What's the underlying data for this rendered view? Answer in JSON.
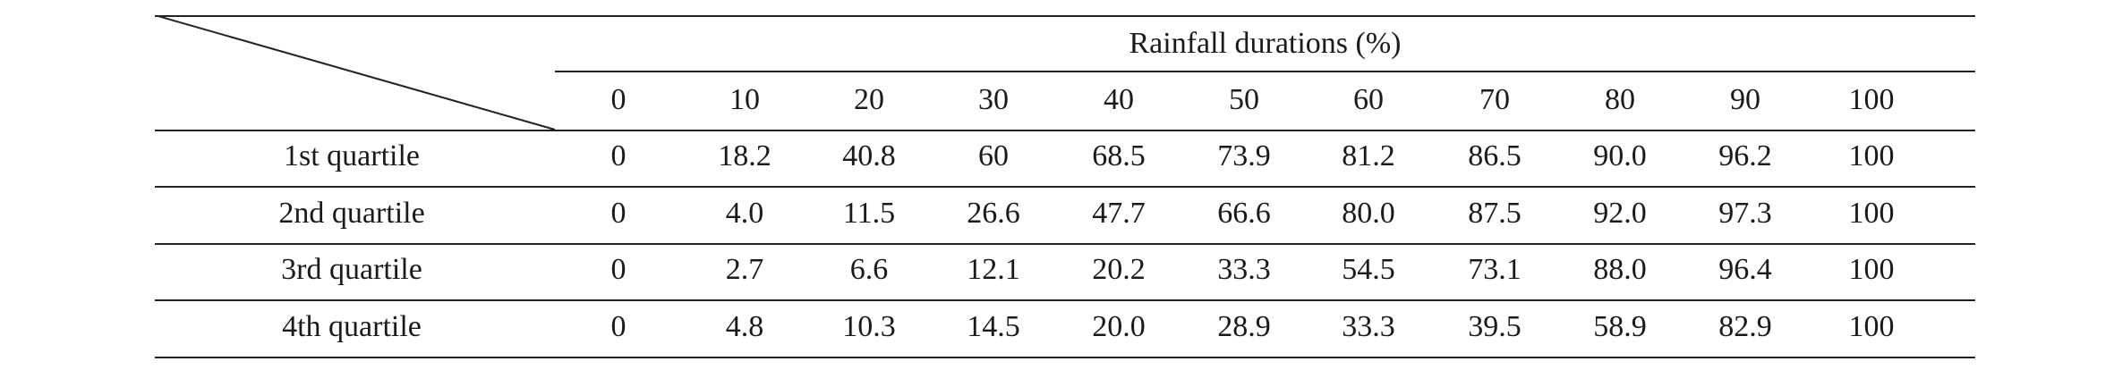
{
  "table": {
    "spanning_header": "Rainfall durations (%)",
    "columns": [
      "0",
      "10",
      "20",
      "30",
      "40",
      "50",
      "60",
      "70",
      "80",
      "90",
      "100"
    ],
    "rows": [
      {
        "label": "1st quartile",
        "values": [
          "0",
          "18.2",
          "40.8",
          "60",
          "68.5",
          "73.9",
          "81.2",
          "86.5",
          "90.0",
          "96.2",
          "100"
        ]
      },
      {
        "label": "2nd quartile",
        "values": [
          "0",
          "4.0",
          "11.5",
          "26.6",
          "47.7",
          "66.6",
          "80.0",
          "87.5",
          "92.0",
          "97.3",
          "100"
        ]
      },
      {
        "label": "3rd quartile",
        "values": [
          "0",
          "2.7",
          "6.6",
          "12.1",
          "20.2",
          "33.3",
          "54.5",
          "73.1",
          "88.0",
          "96.4",
          "100"
        ]
      },
      {
        "label": "4th quartile",
        "values": [
          "0",
          "4.8",
          "10.3",
          "14.5",
          "20.0",
          "28.9",
          "33.3",
          "39.5",
          "58.9",
          "82.9",
          "100"
        ]
      }
    ]
  }
}
